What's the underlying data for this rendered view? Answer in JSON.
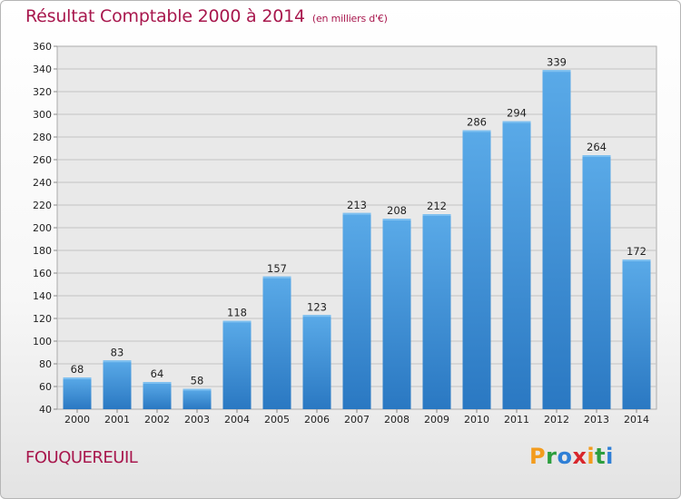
{
  "chart_data": {
    "type": "bar",
    "title": "Résultat Comptable 2000 à 2014",
    "subtitle": "(en milliers d'€)",
    "categories": [
      "2000",
      "2001",
      "2002",
      "2003",
      "2004",
      "2005",
      "2006",
      "2007",
      "2008",
      "2009",
      "2010",
      "2011",
      "2012",
      "2013",
      "2014"
    ],
    "values": [
      68,
      83,
      64,
      58,
      118,
      157,
      123,
      213,
      208,
      212,
      286,
      294,
      339,
      264,
      172
    ],
    "ylim": [
      40,
      360
    ],
    "yticks": [
      40,
      60,
      80,
      100,
      120,
      140,
      160,
      180,
      200,
      220,
      240,
      260,
      280,
      300,
      320,
      340,
      360
    ],
    "grid": true,
    "bar_color": "#3d8fd6"
  },
  "footer": {
    "commune": "FOUQUEREUIL",
    "logo": {
      "text": "Proxiti",
      "letters": [
        {
          "ch": "P",
          "color": "#f39c1e"
        },
        {
          "ch": "r",
          "color": "#2d9e3e"
        },
        {
          "ch": "o",
          "color": "#2f7fd6"
        },
        {
          "ch": "x",
          "color": "#d8262c"
        },
        {
          "ch": "i",
          "color": "#f39c1e"
        },
        {
          "ch": "t",
          "color": "#2d9e3e"
        },
        {
          "ch": "i",
          "color": "#2f7fd6"
        }
      ]
    }
  }
}
